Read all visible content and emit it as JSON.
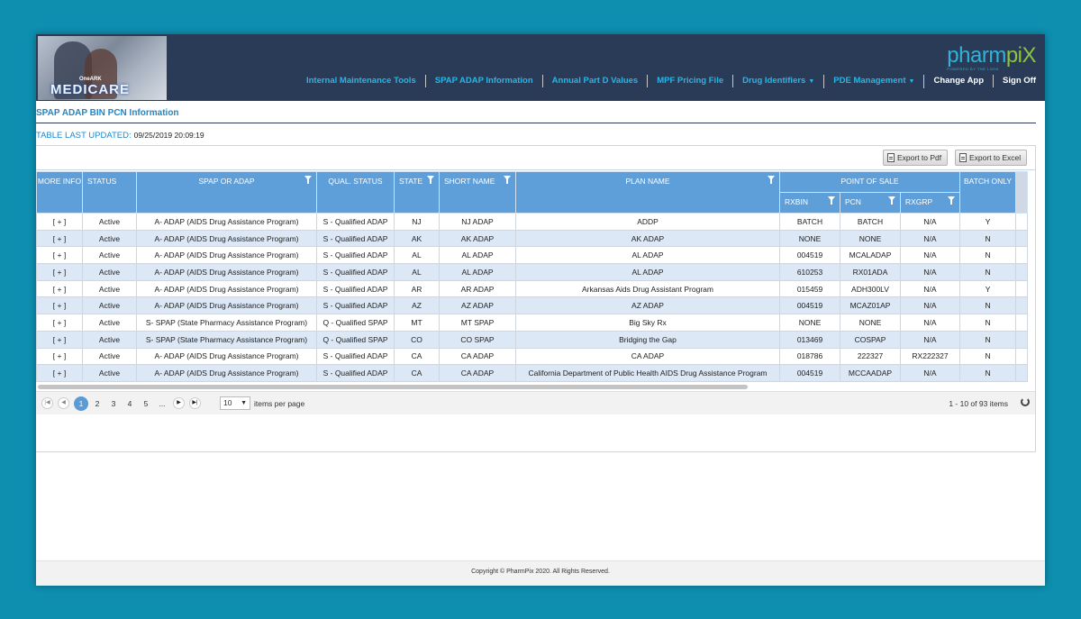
{
  "header": {
    "logo_sub": "OneARK",
    "logo_title": "MEDICARE",
    "brand_name": "pharm",
    "brand_name_accent": "piX",
    "brand_tag": "POWERED BY THE LOOK",
    "nav": [
      {
        "label": "Internal Maintenance Tools"
      },
      {
        "label": "SPAP ADAP Information"
      },
      {
        "label": "Annual Part D Values"
      },
      {
        "label": "MPF Pricing File"
      },
      {
        "label": "Drug Identifiers",
        "dropdown": true
      },
      {
        "label": "PDE Management",
        "dropdown": true
      },
      {
        "label": "Change App"
      },
      {
        "label": "Sign Off"
      }
    ]
  },
  "page": {
    "title": "SPAP ADAP BIN PCN Information",
    "updated_label": "TABLE LAST UPDATED:",
    "updated_value": "09/25/2019 20:09:19"
  },
  "toolbar": {
    "export_pdf": "Export to Pdf",
    "export_excel": "Export to Excel"
  },
  "grid": {
    "headers": {
      "more_info": "MORE INFO",
      "status": "STATUS",
      "spap_or_adap": "SPAP OR ADAP",
      "qual_status": "QUAL. STATUS",
      "state": "STATE",
      "short_name": "SHORT NAME",
      "plan_name": "PLAN NAME",
      "point_of_sale": "POINT OF SALE",
      "rxbin": "RXBIN",
      "pcn": "PCN",
      "rxgrp": "RXGRP",
      "batch_only": "BATCH ONLY"
    },
    "rows": [
      {
        "more": "[ + ]",
        "status": "Active",
        "type": "A- ADAP (AIDS Drug Assistance Program)",
        "qual": "S - Qualified ADAP",
        "state": "NJ",
        "short": "NJ ADAP",
        "plan": "ADDP",
        "rxbin": "BATCH",
        "pcn": "BATCH",
        "rxgrp": "N/A",
        "batch": "Y"
      },
      {
        "more": "[ + ]",
        "status": "Active",
        "type": "A- ADAP (AIDS Drug Assistance Program)",
        "qual": "S - Qualified ADAP",
        "state": "AK",
        "short": "AK ADAP",
        "plan": "AK ADAP",
        "rxbin": "NONE",
        "pcn": "NONE",
        "rxgrp": "N/A",
        "batch": "N"
      },
      {
        "more": "[ + ]",
        "status": "Active",
        "type": "A- ADAP (AIDS Drug Assistance Program)",
        "qual": "S - Qualified ADAP",
        "state": "AL",
        "short": "AL ADAP",
        "plan": "AL ADAP",
        "rxbin": "004519",
        "pcn": "MCALADAP",
        "rxgrp": "N/A",
        "batch": "N"
      },
      {
        "more": "[ + ]",
        "status": "Active",
        "type": "A- ADAP (AIDS Drug Assistance Program)",
        "qual": "S - Qualified ADAP",
        "state": "AL",
        "short": "AL ADAP",
        "plan": "AL ADAP",
        "rxbin": "610253",
        "pcn": "RX01ADA",
        "rxgrp": "N/A",
        "batch": "N"
      },
      {
        "more": "[ + ]",
        "status": "Active",
        "type": "A- ADAP (AIDS Drug Assistance Program)",
        "qual": "S - Qualified ADAP",
        "state": "AR",
        "short": "AR ADAP",
        "plan": "Arkansas Aids Drug Assistant Program",
        "rxbin": "015459",
        "pcn": "ADH300LV",
        "rxgrp": "N/A",
        "batch": "Y"
      },
      {
        "more": "[ + ]",
        "status": "Active",
        "type": "A- ADAP (AIDS Drug Assistance Program)",
        "qual": "S - Qualified ADAP",
        "state": "AZ",
        "short": "AZ ADAP",
        "plan": "AZ ADAP",
        "rxbin": "004519",
        "pcn": "MCAZ01AP",
        "rxgrp": "N/A",
        "batch": "N"
      },
      {
        "more": "[ + ]",
        "status": "Active",
        "type": "S- SPAP (State Pharmacy Assistance Program)",
        "qual": "Q - Qualified SPAP",
        "state": "MT",
        "short": "MT SPAP",
        "plan": "Big Sky Rx",
        "rxbin": "NONE",
        "pcn": "NONE",
        "rxgrp": "N/A",
        "batch": "N"
      },
      {
        "more": "[ + ]",
        "status": "Active",
        "type": "S- SPAP (State Pharmacy Assistance Program)",
        "qual": "Q - Qualified SPAP",
        "state": "CO",
        "short": "CO SPAP",
        "plan": "Bridging the Gap",
        "rxbin": "013469",
        "pcn": "COSPAP",
        "rxgrp": "N/A",
        "batch": "N"
      },
      {
        "more": "[ + ]",
        "status": "Active",
        "type": "A- ADAP (AIDS Drug Assistance Program)",
        "qual": "S - Qualified ADAP",
        "state": "CA",
        "short": "CA ADAP",
        "plan": "CA ADAP",
        "rxbin": "018786",
        "pcn": "222327",
        "rxgrp": "RX222327",
        "batch": "N"
      },
      {
        "more": "[ + ]",
        "status": "Active",
        "type": "A- ADAP (AIDS Drug Assistance Program)",
        "qual": "S - Qualified ADAP",
        "state": "CA",
        "short": "CA ADAP",
        "plan": "California Department of Public Health AIDS Drug Assistance Program",
        "rxbin": "004519",
        "pcn": "MCCAADAP",
        "rxgrp": "N/A",
        "batch": "N"
      }
    ]
  },
  "pager": {
    "pages": [
      "1",
      "2",
      "3",
      "4",
      "5",
      "..."
    ],
    "page_size": "10",
    "items_per_page_label": "items per page",
    "info": "1 - 10 of 93 items"
  },
  "footer": {
    "copyright": "Copyright © PharmPix 2020. All Rights Reserved."
  }
}
